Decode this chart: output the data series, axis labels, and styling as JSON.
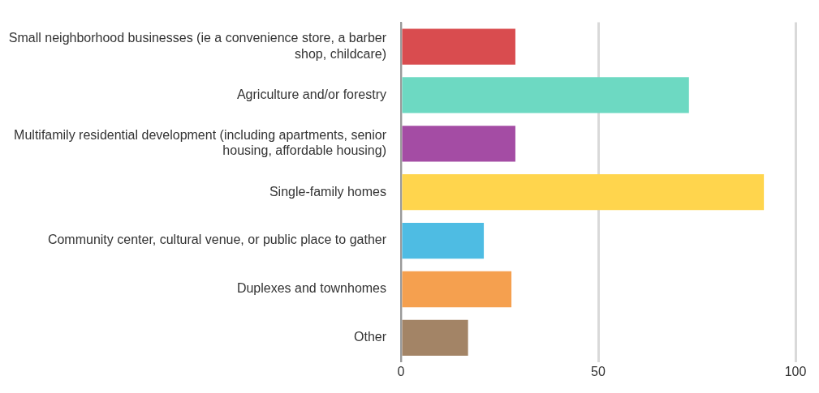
{
  "chart_data": {
    "type": "bar",
    "orientation": "horizontal",
    "categories": [
      "Small neighborhood businesses (ie a convenience store, a barber shop, childcare)",
      "Agriculture and/or forestry",
      "Multifamily residential development (including apartments, senior housing, affordable housing)",
      "Single-family homes",
      "Community center, cultural venue, or public place to gather",
      "Duplexes and townhomes",
      "Other"
    ],
    "values": [
      29,
      73,
      29,
      92,
      21,
      28,
      17
    ],
    "colors": [
      "#d94c4f",
      "#6dd9c2",
      "#a44ca4",
      "#ffd54d",
      "#4ebce3",
      "#f5a04f",
      "#a38466"
    ],
    "xlim": [
      0,
      100
    ],
    "xticks": [
      0,
      50,
      100
    ],
    "grid": "x",
    "legend": false
  }
}
